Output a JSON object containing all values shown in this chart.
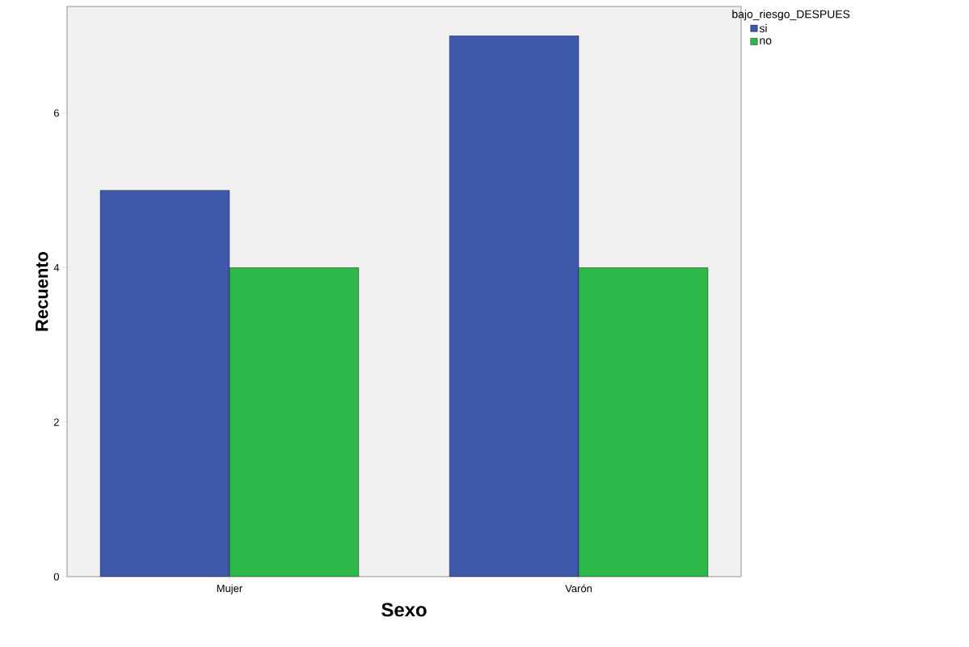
{
  "chart_data": {
    "type": "bar",
    "xlabel": "Sexo",
    "ylabel": "Recuento",
    "legend_title": "bajo_riesgo_DESPUES",
    "categories": [
      "Mujer",
      "Varón"
    ],
    "series": [
      {
        "name": "si",
        "color": "#3e58ac",
        "values": [
          5,
          7
        ]
      },
      {
        "name": "no",
        "color": "#2eb84a",
        "values": [
          4,
          4
        ]
      }
    ],
    "ylim": [
      0,
      7.38
    ],
    "yticks": [
      0,
      2,
      4,
      6
    ],
    "grid": false,
    "legend": "top right"
  }
}
